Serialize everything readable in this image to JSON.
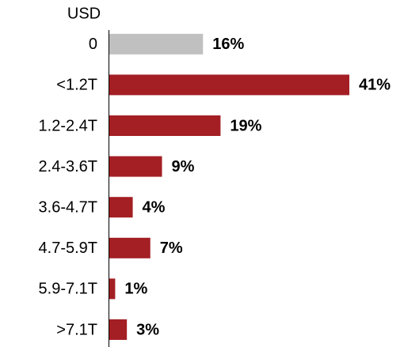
{
  "chart_data": {
    "type": "bar",
    "orientation": "horizontal",
    "axis_label": "USD",
    "categories": [
      "0",
      "<1.2T",
      "1.2-2.4T",
      "2.4-3.6T",
      "3.6-4.7T",
      "4.7-5.9T",
      "5.9-7.1T",
      ">7.1T"
    ],
    "values": [
      16,
      41,
      19,
      9,
      4,
      7,
      1,
      3
    ],
    "value_labels": [
      "16%",
      "41%",
      "19%",
      "9%",
      "4%",
      "7%",
      "1%",
      "3%"
    ],
    "colors": [
      "#c0c0c0",
      "#a31f24",
      "#a31f24",
      "#a31f24",
      "#a31f24",
      "#a31f24",
      "#a31f24",
      "#a31f24"
    ],
    "xlim": [
      0,
      41
    ]
  }
}
